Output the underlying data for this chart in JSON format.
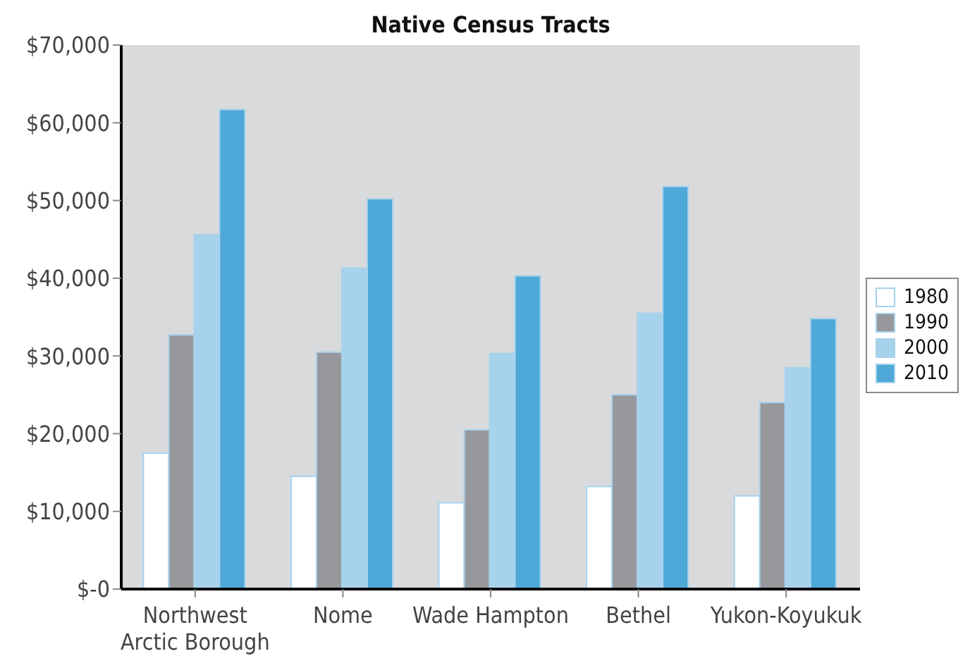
{
  "chart_data": {
    "type": "bar",
    "title": "Native Census Tracts",
    "categories": [
      "Northwest Arctic Borough",
      "Nome",
      "Wade Hampton",
      "Bethel",
      "Yukon-Koyukuk"
    ],
    "series": [
      {
        "name": "1980",
        "color": "#ffffff",
        "values": [
          17500,
          14500,
          11100,
          13200,
          12000
        ]
      },
      {
        "name": "1990",
        "color": "#97989c",
        "values": [
          32700,
          30500,
          20500,
          25000,
          24000
        ]
      },
      {
        "name": "2000",
        "color": "#a7d2ec",
        "values": [
          45600,
          41300,
          30300,
          35500,
          28500
        ]
      },
      {
        "name": "2010",
        "color": "#4ea8d8",
        "values": [
          61700,
          50200,
          40300,
          51800,
          34800
        ]
      }
    ],
    "ylim": [
      0,
      70000
    ],
    "yticks": [
      {
        "value": 0,
        "label": "$-0"
      },
      {
        "value": 10000,
        "label": "$10,000"
      },
      {
        "value": 20000,
        "label": "$20,000"
      },
      {
        "value": 30000,
        "label": "$30,000"
      },
      {
        "value": 40000,
        "label": "$40,000"
      },
      {
        "value": 50000,
        "label": "$50,000"
      },
      {
        "value": 60000,
        "label": "$60,000"
      },
      {
        "value": 70000,
        "label": "$70,000"
      }
    ],
    "grid": false,
    "legend": "right"
  }
}
